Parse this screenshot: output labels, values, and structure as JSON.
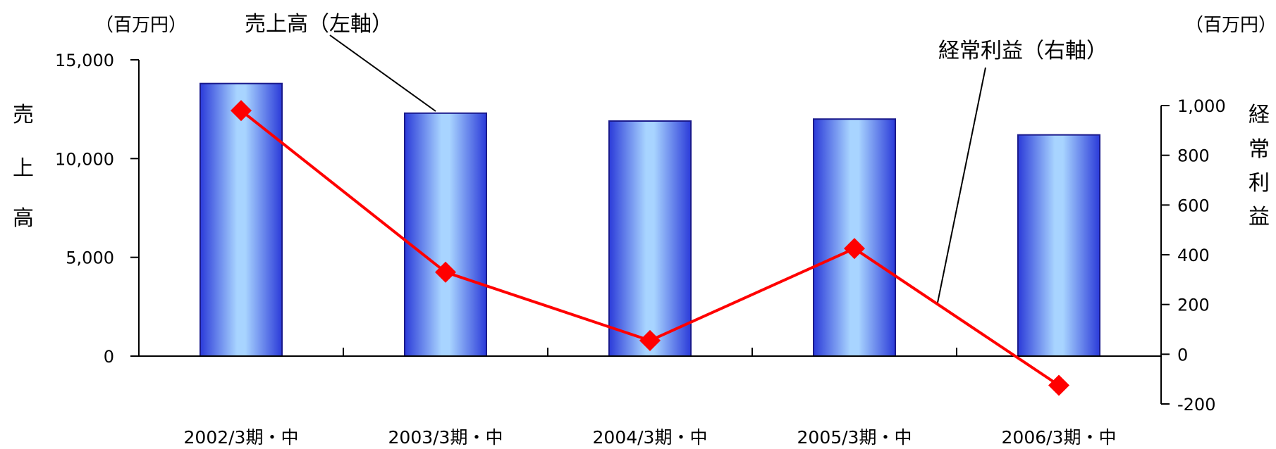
{
  "chart_data": {
    "type": "bar+line",
    "categories": [
      "2002/3期・中",
      "2003/3期・中",
      "2004/3期・中",
      "2005/3期・中",
      "2006/3期・中"
    ],
    "series": [
      {
        "name": "売上高（左軸）",
        "type": "bar",
        "axis": "left",
        "values": [
          13800,
          12300,
          11900,
          12000,
          11200
        ]
      },
      {
        "name": "経常利益（右軸）",
        "type": "line",
        "axis": "right",
        "values": [
          980,
          330,
          55,
          425,
          -125
        ]
      }
    ],
    "left_axis": {
      "title_chars": [
        "売",
        "上",
        "高"
      ],
      "unit": "（百万円）",
      "ylim": [
        0,
        15000
      ],
      "ticks": [
        0,
        5000,
        10000,
        15000
      ],
      "tick_labels": [
        "0",
        "5,000",
        "10,000",
        "15,000"
      ]
    },
    "right_axis": {
      "title_chars": [
        "経",
        "常",
        "利",
        "益"
      ],
      "unit": "（百万円）",
      "ylim": [
        -200,
        1000
      ],
      "ticks": [
        -200,
        0,
        200,
        400,
        600,
        800,
        1000
      ],
      "tick_labels": [
        "-200",
        "0",
        "200",
        "400",
        "600",
        "800",
        "1,000"
      ]
    },
    "annotations": {
      "bar_series_label": "売上高（左軸）",
      "line_series_label": "経常利益（右軸）"
    },
    "colors": {
      "bar_edge": "#1a1a8c",
      "bar_dark": "#2b3bd9",
      "bar_light": "#a8d4ff",
      "line": "#ff0000",
      "marker": "#ff0000",
      "axis": "#000000"
    },
    "grid": false
  }
}
